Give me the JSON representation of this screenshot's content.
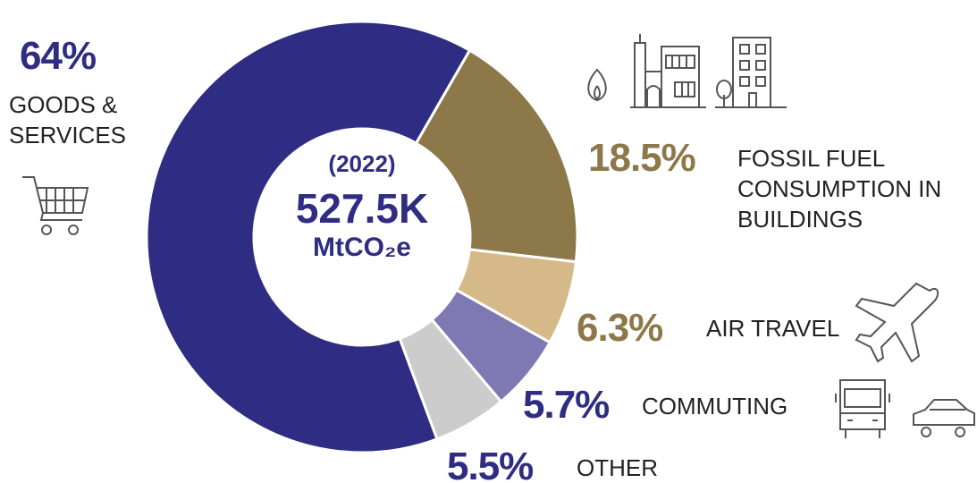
{
  "chart_data": {
    "type": "donut",
    "center_texts": [
      "(2022)",
      "527.5K",
      "MtCO₂e"
    ],
    "categories": [
      "GOODS & SERVICES",
      "FOSSIL FUEL CONSUMPTION IN BUILDINGS",
      "AIR TRAVEL",
      "COMMUTING",
      "OTHER"
    ],
    "values": [
      64,
      18.5,
      6.3,
      5.7,
      5.5
    ],
    "value_labels": [
      "64%",
      "18.5%",
      "6.3%",
      "5.7%",
      "5.5%"
    ],
    "colors": [
      "#2e2d83",
      "#8c7849",
      "#d5b988",
      "#7e79b3",
      "#cccccc"
    ],
    "label_colors": [
      "#2e2d83",
      "#8c7849",
      "#8c7849",
      "#2e2d83",
      "#2e2d83"
    ]
  }
}
